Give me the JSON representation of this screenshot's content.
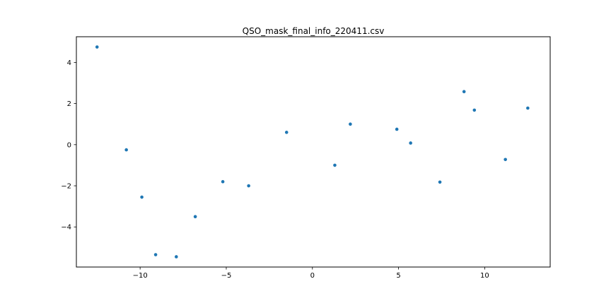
{
  "chart_data": {
    "type": "scatter",
    "title": "QSO_mask_final_info_220411.csv",
    "xlabel": "",
    "ylabel": "",
    "xlim": [
      -13.7,
      13.8
    ],
    "ylim": [
      -5.95,
      5.25
    ],
    "xticks": [
      -10,
      -5,
      0,
      5,
      10
    ],
    "yticks": [
      -4,
      -2,
      0,
      2,
      4
    ],
    "xtick_labels": [
      "−10",
      "−5",
      "0",
      "5",
      "10"
    ],
    "ytick_labels": [
      "−4",
      "−2",
      "0",
      "2",
      "4"
    ],
    "grid": false,
    "legend": "none",
    "color": "#1f77b4",
    "series": [
      {
        "x": [
          -12.5,
          -10.8,
          -9.9,
          -9.1,
          -7.9,
          -6.8,
          -5.2,
          -3.7,
          -1.5,
          1.3,
          2.2,
          4.9,
          5.7,
          7.4,
          8.8,
          9.4,
          11.2,
          12.5
        ],
        "y": [
          4.75,
          -0.25,
          -2.55,
          -5.35,
          -5.45,
          -3.5,
          -1.8,
          -2.0,
          0.6,
          -1.0,
          1.0,
          0.75,
          0.08,
          -1.82,
          2.58,
          1.68,
          -0.72,
          1.78
        ]
      }
    ]
  }
}
